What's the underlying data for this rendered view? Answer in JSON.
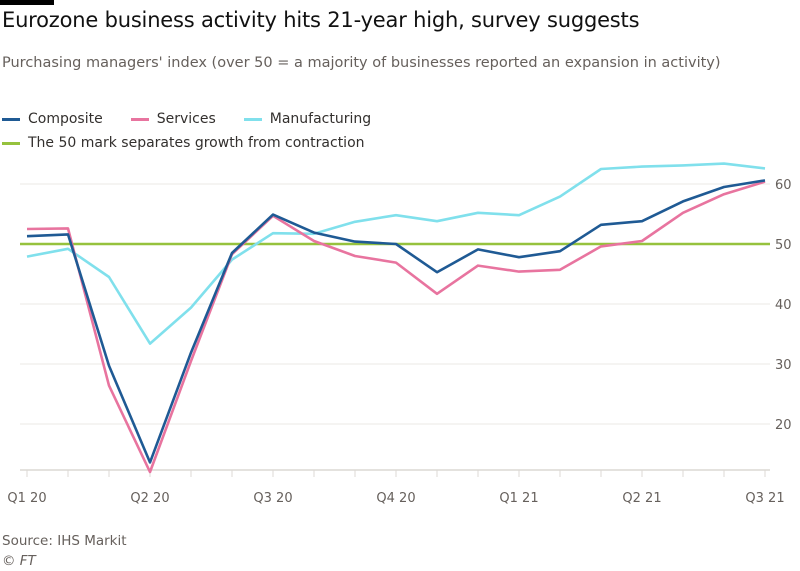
{
  "header": {
    "title": "Eurozone business activity hits 21-year high, survey suggests",
    "subtitle": "Purchasing managers' index (over 50 = a majority of businesses reported an expansion in activity)"
  },
  "footer": {
    "source": "Source: IHS Markit",
    "copyright": "© FT"
  },
  "chart_data": {
    "type": "line",
    "title": "Eurozone business activity hits 21-year high, survey suggests",
    "subtitle": "Purchasing managers' index (over 50 = a majority of businesses reported an expansion in activity)",
    "x": [
      "Jan 2020",
      "Feb 2020",
      "Mar 2020",
      "Apr 2020",
      "May 2020",
      "Jun 2020",
      "Jul 2020",
      "Aug 2020",
      "Sep 2020",
      "Oct 2020",
      "Nov 2020",
      "Dec 2020",
      "Jan 2021",
      "Feb 2021",
      "Mar 2021",
      "Apr 2021",
      "May 2021",
      "Jun 2021",
      "Jul 2021"
    ],
    "xtick_labels": [
      "Q1 20",
      "Q2 20",
      "Q3 20",
      "Q4 20",
      "Q1 21",
      "Q2 21",
      "Q3 21"
    ],
    "yticks": [
      20,
      30,
      40,
      50,
      60
    ],
    "ylim": [
      12.3,
      65
    ],
    "grid": true,
    "y_axis_side": "right",
    "legend_placement": "top-left",
    "series": [
      {
        "name": "Composite",
        "color": "#1f5a94",
        "values": [
          51.3,
          51.6,
          29.7,
          13.6,
          31.9,
          48.5,
          54.9,
          51.9,
          50.4,
          50.0,
          45.3,
          49.1,
          47.8,
          48.8,
          53.2,
          53.8,
          57.1,
          59.5,
          60.6
        ]
      },
      {
        "name": "Services",
        "color": "#e8749f",
        "values": [
          52.5,
          52.6,
          26.4,
          12.0,
          30.5,
          48.3,
          54.7,
          50.5,
          48.0,
          46.9,
          41.7,
          46.4,
          45.4,
          45.7,
          49.6,
          50.5,
          55.2,
          58.3,
          60.4
        ]
      },
      {
        "name": "Manufacturing",
        "color": "#80e0ec",
        "values": [
          47.9,
          49.2,
          44.5,
          33.4,
          39.4,
          47.4,
          51.8,
          51.7,
          53.7,
          54.8,
          53.8,
          55.2,
          54.8,
          57.9,
          62.5,
          62.9,
          63.1,
          63.4,
          62.6
        ]
      }
    ],
    "reference_line": {
      "label": "The 50 mark separates growth from contraction",
      "value": 50,
      "color": "#96c23d"
    }
  }
}
